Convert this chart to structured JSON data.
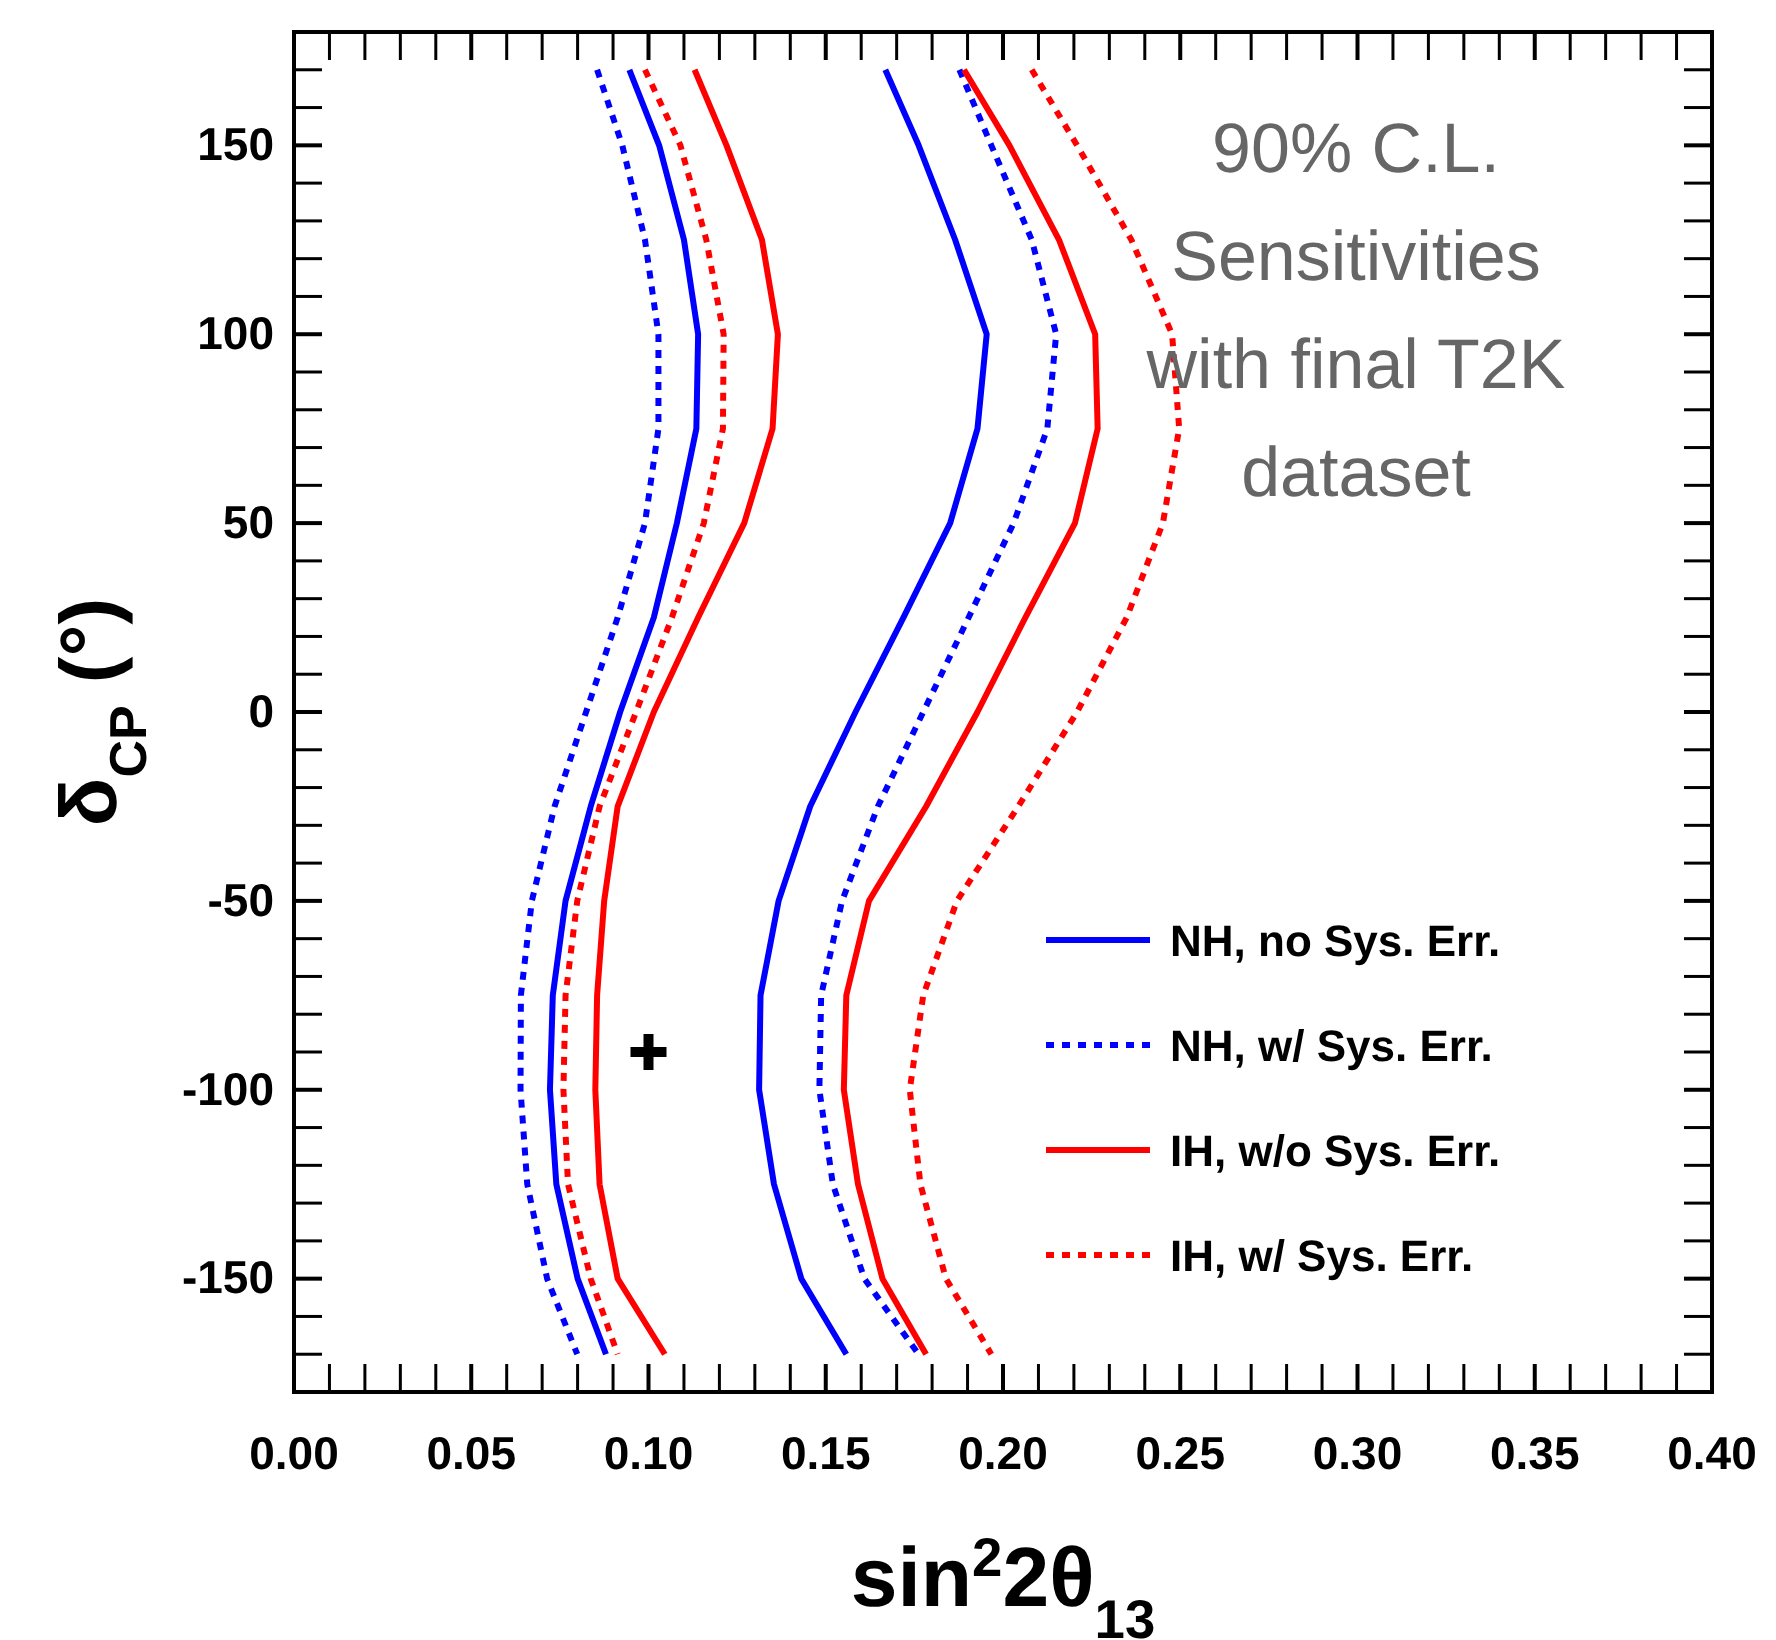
{
  "chart_data": {
    "type": "line",
    "xlabel": "sin$^{2}$2θ$_{13}$",
    "ylabel": "δ$_{CP}$ (°)",
    "annotations": [
      "90% C.L.\nSensitivities\nwith final T2K\ndataset"
    ],
    "xlim": [
      0,
      0.4
    ],
    "ylim": [
      -180,
      180
    ],
    "xticks": [
      {
        "value": 0,
        "label": "0.00"
      },
      {
        "value": 0.01,
        "label": null
      },
      {
        "value": 0.02,
        "label": null
      },
      {
        "value": 0.03,
        "label": null
      },
      {
        "value": 0.04,
        "label": null
      },
      {
        "value": 0.05,
        "label": "0.05"
      },
      {
        "value": 0.06,
        "label": null
      },
      {
        "value": 0.07,
        "label": null
      },
      {
        "value": 0.08,
        "label": null
      },
      {
        "value": 0.09,
        "label": null
      },
      {
        "value": 0.1,
        "label": "0.10"
      },
      {
        "value": 0.11,
        "label": null
      },
      {
        "value": 0.12,
        "label": null
      },
      {
        "value": 0.13,
        "label": null
      },
      {
        "value": 0.14,
        "label": null
      },
      {
        "value": 0.15,
        "label": "0.15"
      },
      {
        "value": 0.16,
        "label": null
      },
      {
        "value": 0.17,
        "label": null
      },
      {
        "value": 0.18,
        "label": null
      },
      {
        "value": 0.19,
        "label": null
      },
      {
        "value": 0.2,
        "label": "0.20"
      },
      {
        "value": 0.21,
        "label": null
      },
      {
        "value": 0.22,
        "label": null
      },
      {
        "value": 0.23,
        "label": null
      },
      {
        "value": 0.24,
        "label": null
      },
      {
        "value": 0.25,
        "label": "0.25"
      },
      {
        "value": 0.26,
        "label": null
      },
      {
        "value": 0.27,
        "label": null
      },
      {
        "value": 0.28,
        "label": null
      },
      {
        "value": 0.29,
        "label": null
      },
      {
        "value": 0.3,
        "label": "0.30"
      },
      {
        "value": 0.31,
        "label": null
      },
      {
        "value": 0.32,
        "label": null
      },
      {
        "value": 0.33,
        "label": null
      },
      {
        "value": 0.34,
        "label": null
      },
      {
        "value": 0.35,
        "label": "0.35"
      },
      {
        "value": 0.36,
        "label": null
      },
      {
        "value": 0.37,
        "label": null
      },
      {
        "value": 0.38,
        "label": null
      },
      {
        "value": 0.39,
        "label": null
      },
      {
        "value": 0.4,
        "label": "0.40"
      }
    ],
    "yticks": [
      {
        "value": -170,
        "label": null
      },
      {
        "value": -160,
        "label": null
      },
      -150,
      {
        "value": -140,
        "label": null
      },
      {
        "value": -130,
        "label": null
      },
      {
        "value": -120,
        "label": null
      },
      {
        "value": -110,
        "label": null
      },
      -100,
      {
        "value": -90,
        "label": null
      },
      {
        "value": -80,
        "label": null
      },
      {
        "value": -70,
        "label": null
      },
      {
        "value": -60,
        "label": null
      },
      -50,
      {
        "value": -40,
        "label": null
      },
      {
        "value": -30,
        "label": null
      },
      {
        "value": -20,
        "label": null
      },
      {
        "value": -10,
        "label": null
      },
      0,
      {
        "value": 10,
        "label": null
      },
      {
        "value": 20,
        "label": null
      },
      {
        "value": 30,
        "label": null
      },
      {
        "value": 40,
        "label": null
      },
      50,
      {
        "value": 60,
        "label": null
      },
      {
        "value": 70,
        "label": null
      },
      {
        "value": 80,
        "label": null
      },
      {
        "value": 90,
        "label": null
      },
      100,
      {
        "value": 110,
        "label": null
      },
      {
        "value": 120,
        "label": null
      },
      {
        "value": 130,
        "label": null
      },
      {
        "value": 140,
        "label": null
      },
      150,
      {
        "value": 160,
        "label": null
      },
      {
        "value": 170,
        "label": null
      }
    ],
    "grid": false,
    "legend": "bottom right",
    "series": [
      {
        "name": "NH, no Sys. Err.",
        "color": "#0000ff",
        "line_style": "solid",
        "x": [
          0.0946,
          0.103,
          0.11,
          0.114,
          0.1135,
          0.108,
          0.1015,
          0.092,
          0.0837,
          0.0766,
          0.073,
          0.0722,
          0.074,
          0.08,
          0.088
        ],
        "values": [
          170,
          150,
          125,
          100,
          75,
          50,
          25,
          0,
          -25,
          -50,
          -75,
          -100,
          -125,
          -150,
          -170
        ]
      },
      {
        "name": "NH, w/ Sys. Err.",
        "color": "#0000ff",
        "line_style": "dotted",
        "x": [
          0.0855,
          0.0926,
          0.099,
          0.1028,
          0.1028,
          0.099,
          0.0913,
          0.0824,
          0.0735,
          0.0671,
          0.064,
          0.0639,
          0.0658,
          0.0714,
          0.0799
        ],
        "values": [
          170,
          150,
          125,
          100,
          75,
          50,
          25,
          0,
          -25,
          -50,
          -75,
          -100,
          -125,
          -150,
          -170
        ]
      },
      {
        "name": "IH, w/o Sys. Err.",
        "color": "#ff0000",
        "line_style": "solid",
        "x": [
          0.113,
          0.122,
          0.132,
          0.1365,
          0.135,
          0.127,
          0.114,
          0.1015,
          0.0913,
          0.0875,
          0.0855,
          0.085,
          0.0862,
          0.0913,
          0.1046
        ],
        "values": [
          170,
          150,
          125,
          100,
          75,
          50,
          25,
          0,
          -25,
          -50,
          -75,
          -100,
          -125,
          -150,
          -170
        ]
      },
      {
        "name": "IH, w/ Sys. Err.",
        "color": "#ff0000",
        "line_style": "dotted",
        "x": [
          0.099,
          0.109,
          0.1163,
          0.1212,
          0.121,
          0.1156,
          0.1066,
          0.0965,
          0.0862,
          0.0799,
          0.0766,
          0.076,
          0.0773,
          0.0837,
          0.0913
        ],
        "values": [
          170,
          150,
          125,
          100,
          75,
          50,
          25,
          0,
          -25,
          -50,
          -75,
          -100,
          -125,
          -150,
          -170
        ]
      },
      {
        "color": "#0000ff",
        "line_style": "solid",
        "x": [
          0.1668,
          0.1762,
          0.1865,
          0.1954,
          0.1928,
          0.1851,
          0.1719,
          0.1584,
          0.1456,
          0.1367,
          0.1316,
          0.1312,
          0.1354,
          0.1431,
          0.1558
        ],
        "values": [
          170,
          150,
          125,
          100,
          75,
          50,
          25,
          0,
          -25,
          -50,
          -75,
          -100,
          -125,
          -150,
          -170
        ]
      },
      {
        "color": "#0000ff",
        "line_style": "dotted",
        "x": [
          0.1877,
          0.1967,
          0.2081,
          0.215,
          0.2125,
          0.203,
          0.1903,
          0.1775,
          0.1647,
          0.1546,
          0.1487,
          0.1482,
          0.152,
          0.1609,
          0.1762
        ],
        "values": [
          170,
          150,
          125,
          100,
          75,
          50,
          25,
          0,
          -25,
          -50,
          -75,
          -100,
          -125,
          -150,
          -170
        ]
      },
      {
        "color": "#ff0000",
        "line_style": "solid",
        "x": [
          0.189,
          0.2018,
          0.2158,
          0.226,
          0.2267,
          0.2203,
          0.2063,
          0.1928,
          0.1783,
          0.1622,
          0.1558,
          0.1551,
          0.1591,
          0.166,
          0.1783
        ],
        "values": [
          170,
          150,
          125,
          100,
          75,
          50,
          25,
          0,
          -25,
          -50,
          -75,
          -100,
          -125,
          -150,
          -170
        ]
      },
      {
        "color": "#ff0000",
        "line_style": "dotted",
        "x": [
          0.2081,
          0.2209,
          0.2362,
          0.2477,
          0.2497,
          0.2451,
          0.2349,
          0.2209,
          0.2043,
          0.187,
          0.1775,
          0.1737,
          0.1767,
          0.1839,
          0.1967
        ],
        "values": [
          170,
          150,
          125,
          100,
          75,
          50,
          25,
          0,
          -25,
          -50,
          -75,
          -100,
          -125,
          -150,
          -170
        ]
      },
      {
        "type": "scatter",
        "color": "#000000",
        "marker": "cross",
        "x": [
          0.1
        ],
        "values": [
          -90
        ]
      }
    ]
  }
}
